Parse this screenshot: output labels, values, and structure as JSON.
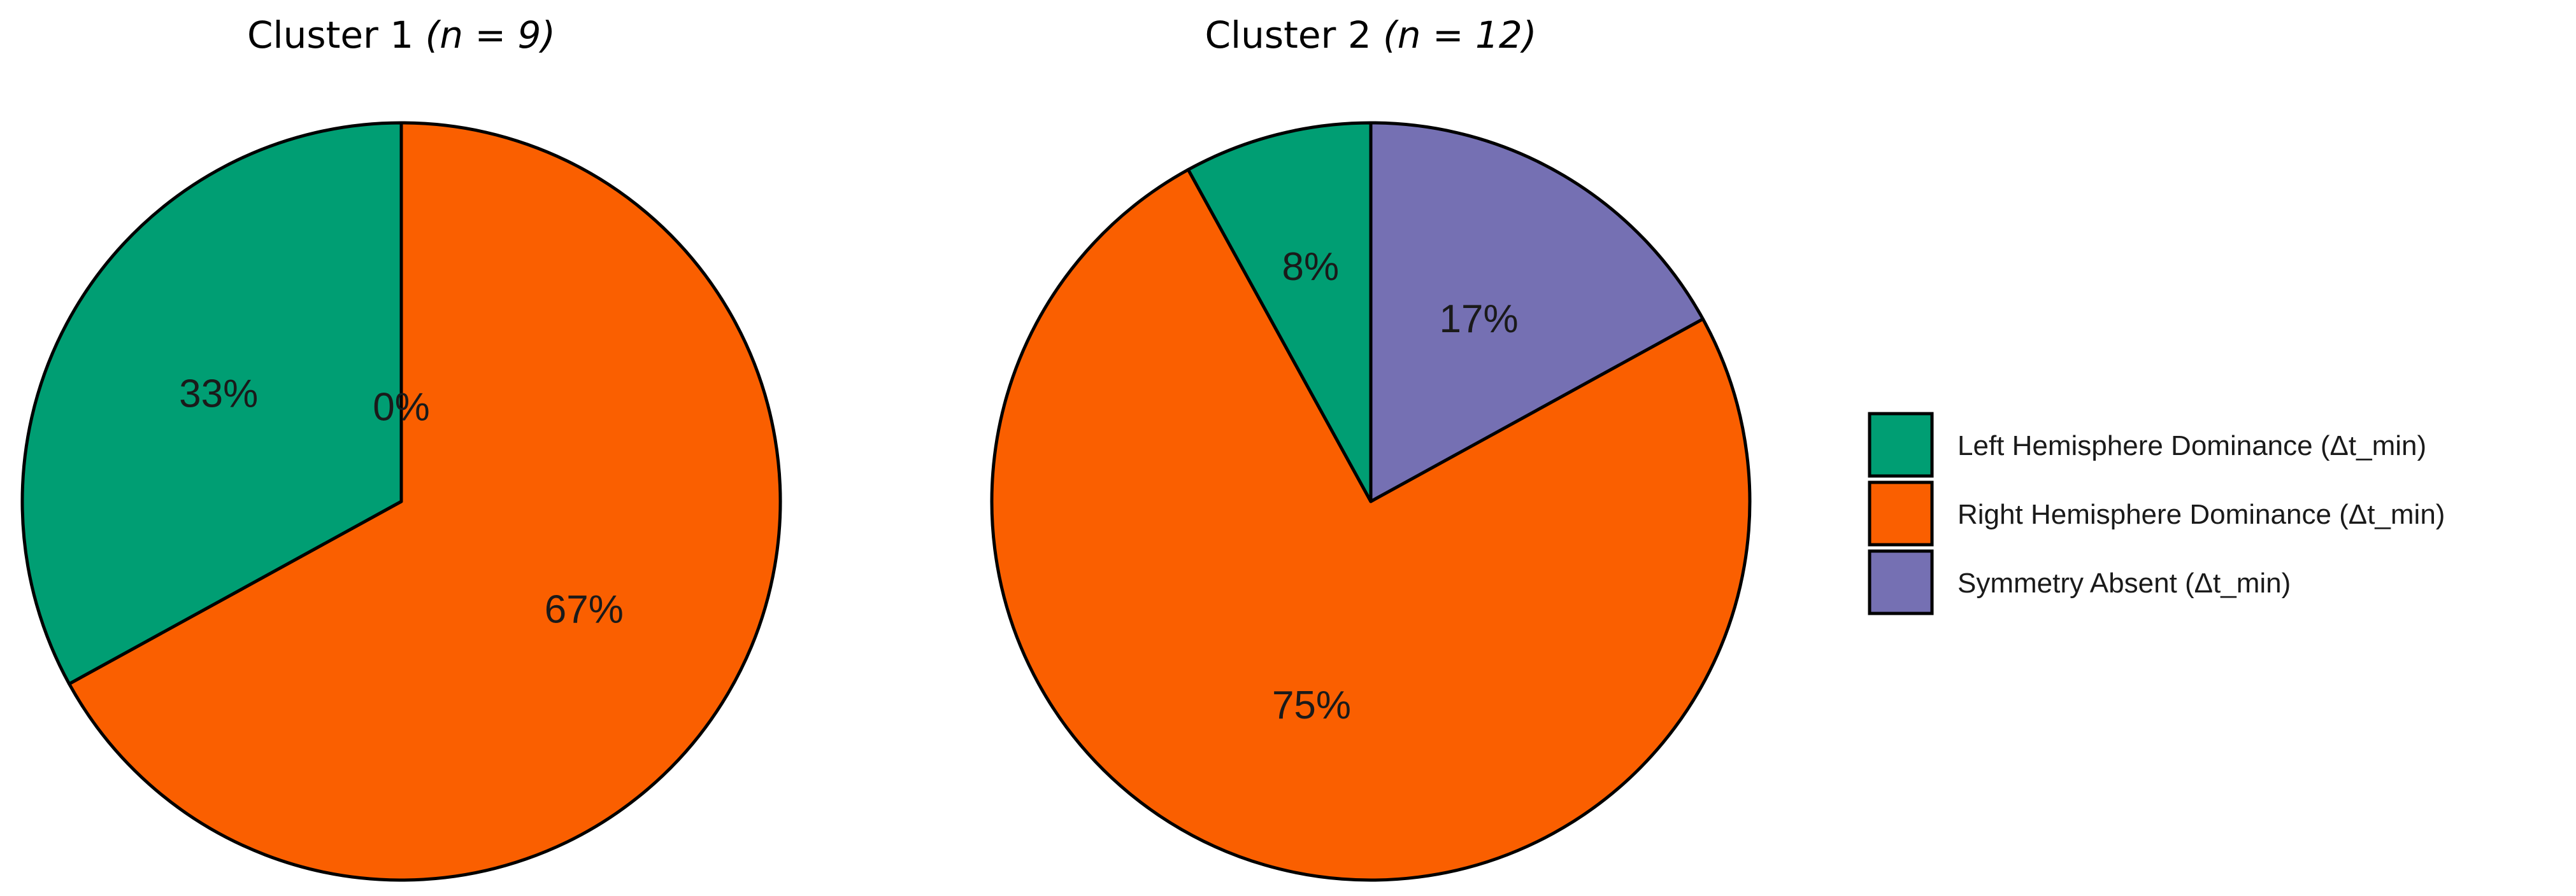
{
  "colors": {
    "left": "#009E73",
    "right": "#FA5F00",
    "symmetry": "#7570B3"
  },
  "legend": {
    "placement": "right",
    "entries": [
      {
        "key": "left",
        "label": "Left Hemisphere Dominance (Δt_min)"
      },
      {
        "key": "right",
        "label": "Right Hemisphere Dominance (Δt_min)"
      },
      {
        "key": "symmetry",
        "label": "Symmetry Absent (Δt_min)"
      }
    ]
  },
  "chart_data": [
    {
      "type": "pie",
      "title": "Cluster 1",
      "title_n": "(n = 9)",
      "categories": [
        "Left Hemisphere Dominance (Δt_min)",
        "Right Hemisphere Dominance (Δt_min)",
        "Symmetry Absent (Δt_min)"
      ],
      "values": [
        33,
        67,
        0
      ],
      "labels": [
        "33%",
        "67%",
        "0%"
      ]
    },
    {
      "type": "pie",
      "title": "Cluster 2",
      "title_n": "(n = 12)",
      "categories": [
        "Left Hemisphere Dominance (Δt_min)",
        "Right Hemisphere Dominance (Δt_min)",
        "Symmetry Absent (Δt_min)"
      ],
      "values": [
        8,
        75,
        17
      ],
      "labels": [
        "8%",
        "75%",
        "17%"
      ]
    }
  ]
}
